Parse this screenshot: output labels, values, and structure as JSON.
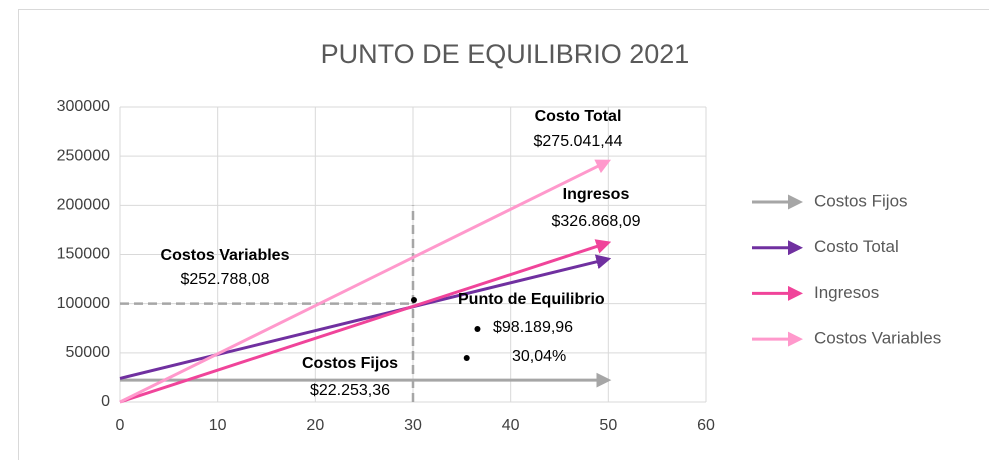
{
  "chart_data": {
    "type": "line",
    "title": "PUNTO DE EQUILIBRIO 2021",
    "xlim": [
      0,
      60
    ],
    "xticks": [
      0,
      10,
      20,
      30,
      40,
      50,
      60
    ],
    "ylim": [
      0,
      300000
    ],
    "yticks": [
      0,
      50000,
      100000,
      150000,
      200000,
      250000,
      300000
    ],
    "grid": true,
    "legend": "right",
    "series": [
      {
        "name": "Costos Fijos",
        "color": "#a6a6a6",
        "x": [
          0,
          50
        ],
        "values": [
          22253.36,
          22253.36
        ]
      },
      {
        "name": "Costo Total",
        "color": "#7030a0",
        "x": [
          0,
          50
        ],
        "values": [
          24000,
          145500
        ]
      },
      {
        "name": "Ingresos",
        "color": "#f0449a",
        "x": [
          0,
          50
        ],
        "values": [
          0,
          162000
        ]
      },
      {
        "name": "Costos Variables",
        "color": "#ff99cc",
        "x": [
          0,
          50
        ],
        "values": [
          0,
          245000
        ]
      }
    ],
    "reference_lines": [
      {
        "color": "#a6a6a6",
        "x": [
          30,
          30
        ],
        "values": [
          0,
          200000
        ]
      },
      {
        "color": "#a6a6a6",
        "x": [
          0,
          30
        ],
        "values": [
          100000,
          100000
        ]
      }
    ],
    "markers": {
      "color": "#000000",
      "x": [
        30.1,
        36.6,
        35.5
      ],
      "values": [
        103700,
        74200,
        44700
      ]
    },
    "annotations": [
      {
        "lines": [
          "Costo Total",
          "$275.041,44"
        ]
      },
      {
        "lines": [
          "Ingresos",
          "$326.868,09"
        ]
      },
      {
        "lines": [
          "Costos Variables",
          "$252.788,08"
        ]
      },
      {
        "lines": [
          "Punto de Equilibrio",
          "$98.189,96",
          "30,04%"
        ]
      },
      {
        "lines": [
          "Costos Fijos",
          "$22.253,36"
        ]
      }
    ]
  }
}
